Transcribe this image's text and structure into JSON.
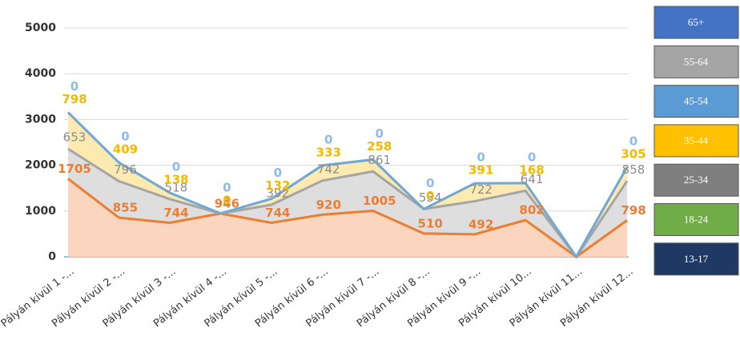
{
  "chart_data": {
    "type": "stacked_area",
    "categories": [
      "Pályán kívül 1 -...",
      "Pályán kívül 2 -...",
      "Pályán kívül 3 -...",
      "Pályán kívül 4 -...",
      "Pályán kívül 5 -...",
      "Pályán kívül 6 -...",
      "Pályán kívül 7 -...",
      "Pályán kívül 8 -...",
      "Pályán kívül 9 -...",
      "Pályán kívül 10...",
      "Pályán kívül 11...",
      "Pályán kívül 12..."
    ],
    "series": [
      {
        "color": "#ed7d31",
        "fill": "#fbd5bd",
        "label_color": "#ed7d31",
        "values": [
          1705,
          855,
          744,
          946,
          744,
          920,
          1005,
          510,
          492,
          802,
          0,
          798
        ]
      },
      {
        "color": "#a5a5a5",
        "fill": "#dedede",
        "label_color": "#8c8c8c",
        "values": [
          653,
          796,
          518,
          0,
          392,
          742,
          861,
          534,
          722,
          641,
          0,
          858
        ]
      },
      {
        "color": "#ffc000",
        "fill": "#fdeab0",
        "label_color": "#f5b800",
        "values": [
          798,
          409,
          138,
          0,
          132,
          333,
          258,
          0,
          391,
          168,
          0,
          305
        ]
      },
      {
        "color": "#6fa8dc",
        "fill": "none",
        "label_color": "#8fbbe6",
        "values": [
          0,
          0,
          0,
          0,
          0,
          0,
          0,
          0,
          0,
          0,
          0,
          0
        ]
      }
    ],
    "legend": [
      {
        "name": "65+",
        "color": "#4472c4"
      },
      {
        "name": "55-64",
        "color": "#a5a5a5"
      },
      {
        "name": "45-54",
        "color": "#5b9bd5"
      },
      {
        "name": "35-44",
        "color": "#ffc000"
      },
      {
        "name": "25-34",
        "color": "#7f7f7f"
      },
      {
        "name": "18-24",
        "color": "#70ad47"
      },
      {
        "name": "13-17",
        "color": "#1f3864"
      }
    ],
    "ylim": [
      0,
      5000
    ],
    "yticks": [
      0,
      1000,
      2000,
      3000,
      4000,
      5000
    ],
    "grid": true
  }
}
